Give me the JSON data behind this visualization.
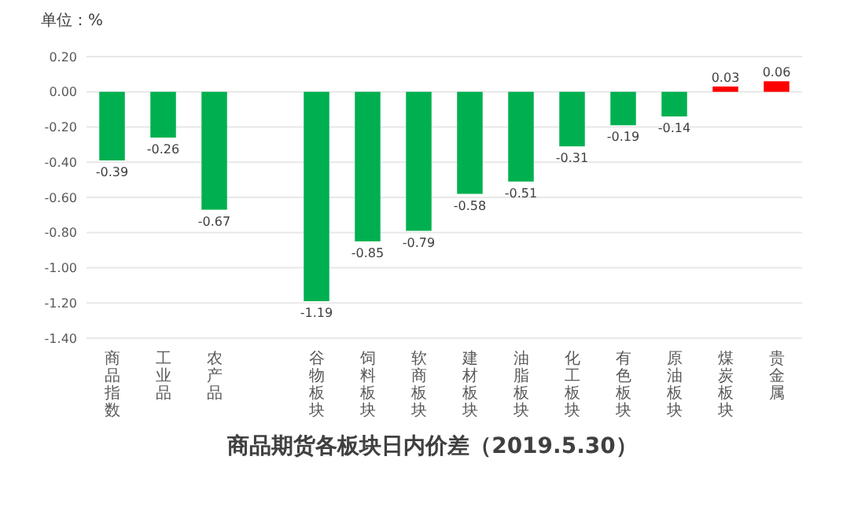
{
  "chart_data": {
    "type": "bar",
    "title": "商品期货各板块日内价差（2019.5.30）",
    "ylabel": "单位：%",
    "categories": [
      "商品指数",
      "工业品",
      "农产品",
      null,
      "谷物板块",
      "饲料板块",
      "软商板块",
      "建材板块",
      "油脂板块",
      "化工板块",
      "有色板块",
      "原油板块",
      "煤炭板块",
      "贵金属"
    ],
    "values": [
      -0.39,
      -0.26,
      -0.67,
      null,
      -1.19,
      -0.85,
      -0.79,
      -0.58,
      -0.51,
      -0.31,
      -0.19,
      -0.14,
      0.03,
      0.06
    ],
    "colors": [
      "#00b050",
      "#00b050",
      "#00b050",
      null,
      "#00b050",
      "#00b050",
      "#00b050",
      "#00b050",
      "#00b050",
      "#00b050",
      "#00b050",
      "#00b050",
      "#ff0000",
      "#ff0000"
    ],
    "ylim": [
      -1.4,
      0.2
    ],
    "yticks": [
      {
        "value": 0.2,
        "label": "0.20"
      },
      {
        "value": 0,
        "label": "0.00"
      },
      {
        "value": -0.2,
        "label": "-0.20"
      },
      {
        "value": -0.4,
        "label": "-0.40"
      },
      {
        "value": -0.6,
        "label": "-0.60"
      },
      {
        "value": -0.8,
        "label": "-0.80"
      },
      {
        "value": -1,
        "label": "-1.00"
      },
      {
        "value": -1.2,
        "label": "-1.20"
      },
      {
        "value": -1.4,
        "label": "-1.40"
      }
    ],
    "grid": "y",
    "data_labels": true
  }
}
